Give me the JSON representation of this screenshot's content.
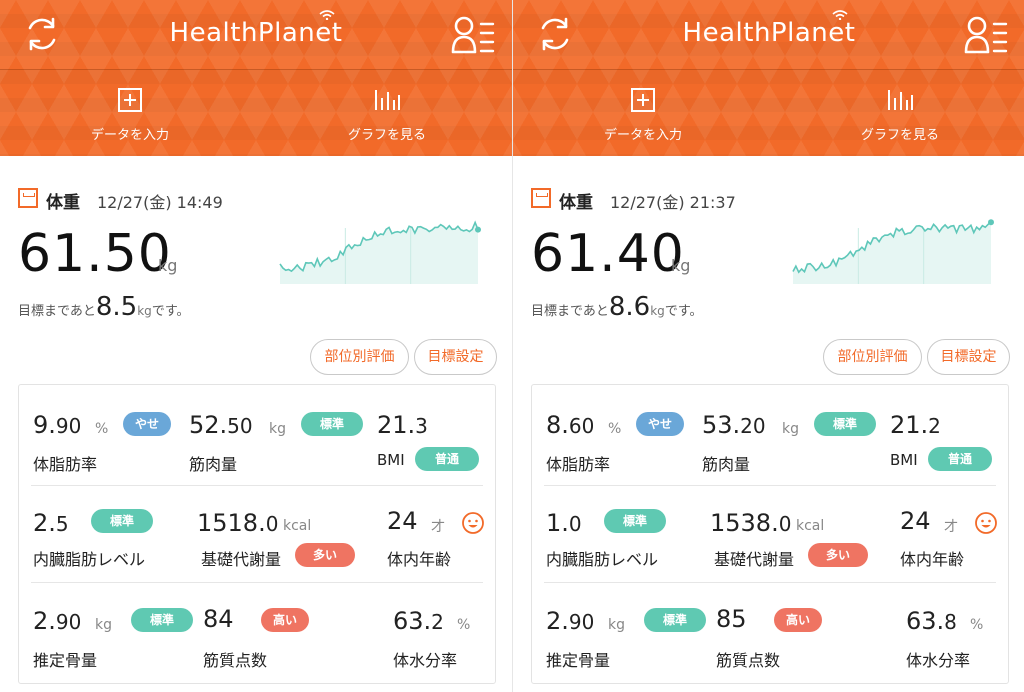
{
  "app": {
    "logo": "HealthPlanet",
    "actions": {
      "input": "データを入力",
      "graph": "グラフを見る"
    },
    "buttons": {
      "parts": "部位別評価",
      "goal": "目標設定"
    }
  },
  "colors": {
    "brand": "#f26a29",
    "teal": "#5fc9b2",
    "blue": "#6aa7d8",
    "red": "#ef7462",
    "chart_line": "#5ec7b9"
  },
  "panels": [
    {
      "weight": {
        "title": "体重",
        "datetime": "12/27(金) 14:49",
        "value": "61.50",
        "unit": "kg"
      },
      "goal": {
        "prefix": "目標まであと",
        "value": "8.5",
        "unit": "kg",
        "suffix": "です。"
      },
      "metrics": {
        "body_fat": {
          "int": "9.",
          "dec": "90",
          "unit": "%",
          "badge": "やせ",
          "label": "体脂肪率"
        },
        "muscle": {
          "int": "52.",
          "dec": "50",
          "unit": "kg",
          "badge": "標準",
          "label": "筋肉量"
        },
        "bmi": {
          "int": "21.",
          "dec": "3",
          "label": "BMI",
          "badge": "普通"
        },
        "visceral": {
          "int": "2.",
          "dec": "5",
          "badge": "標準",
          "label": "内臓脂肪レベル"
        },
        "bmr": {
          "int": "1518.",
          "dec": "0",
          "unit": "kcal",
          "badge": "多い",
          "label": "基礎代謝量"
        },
        "body_age": {
          "int": "24",
          "unit": "才",
          "label": "体内年齢"
        },
        "bone": {
          "int": "2.",
          "dec": "90",
          "unit": "kg",
          "badge": "標準",
          "label": "推定骨量"
        },
        "muscle_score": {
          "int": "84",
          "badge": "高い",
          "label": "筋質点数"
        },
        "water": {
          "int": "63.",
          "dec": "2",
          "unit": "%",
          "label": "体水分率"
        }
      }
    },
    {
      "weight": {
        "title": "体重",
        "datetime": "12/27(金) 21:37",
        "value": "61.40",
        "unit": "kg"
      },
      "goal": {
        "prefix": "目標まであと",
        "value": "8.6",
        "unit": "kg",
        "suffix": "です。"
      },
      "metrics": {
        "body_fat": {
          "int": "8.",
          "dec": "60",
          "unit": "%",
          "badge": "やせ",
          "label": "体脂肪率"
        },
        "muscle": {
          "int": "53.",
          "dec": "20",
          "unit": "kg",
          "badge": "標準",
          "label": "筋肉量"
        },
        "bmi": {
          "int": "21.",
          "dec": "2",
          "label": "BMI",
          "badge": "普通"
        },
        "visceral": {
          "int": "1.",
          "dec": "0",
          "badge": "標準",
          "label": "内臓脂肪レベル"
        },
        "bmr": {
          "int": "1538.",
          "dec": "0",
          "unit": "kcal",
          "badge": "多い",
          "label": "基礎代謝量"
        },
        "body_age": {
          "int": "24",
          "unit": "才",
          "label": "体内年齢"
        },
        "bone": {
          "int": "2.",
          "dec": "90",
          "unit": "kg",
          "badge": "標準",
          "label": "推定骨量"
        },
        "muscle_score": {
          "int": "85",
          "badge": "高い",
          "label": "筋質点数"
        },
        "water": {
          "int": "63.",
          "dec": "8",
          "unit": "%",
          "label": "体水分率"
        }
      }
    }
  ]
}
